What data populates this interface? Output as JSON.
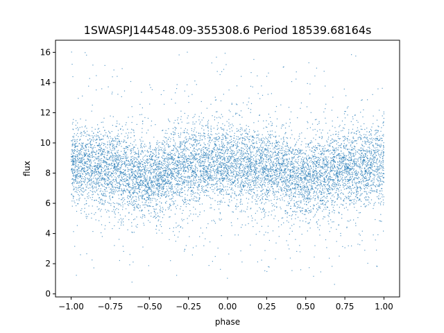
{
  "chart_data": {
    "type": "scatter",
    "title": "1SWASPJ144548.09-355308.6 Period 18539.68164s",
    "xlabel": "phase",
    "ylabel": "flux",
    "xlim": [
      -1.1,
      1.1
    ],
    "ylim": [
      -0.2,
      16.8
    ],
    "grid": false,
    "marker_color": "#1f77b4",
    "x_ticks": [
      -1.0,
      -0.75,
      -0.5,
      -0.25,
      0.0,
      0.25,
      0.5,
      0.75,
      1.0
    ],
    "x_tick_labels": [
      "−1.00",
      "−0.75",
      "−0.50",
      "−0.25",
      "0.00",
      "0.25",
      "0.50",
      "0.75",
      "1.00"
    ],
    "y_ticks": [
      0,
      2,
      4,
      6,
      8,
      10,
      12,
      14,
      16
    ],
    "y_tick_labels": [
      "0",
      "2",
      "4",
      "6",
      "8",
      "10",
      "12",
      "14",
      "16"
    ],
    "series": [
      {
        "x_range": [
          -1.0,
          1.0
        ],
        "flux_profile": [
          {
            "phase": -1.0,
            "median_flux": 8.5
          },
          {
            "phase": -0.75,
            "median_flux": 8.4
          },
          {
            "phase": -0.5,
            "median_flux": 7.6
          },
          {
            "phase": -0.25,
            "median_flux": 8.4
          },
          {
            "phase": 0.0,
            "median_flux": 8.6
          },
          {
            "phase": 0.25,
            "median_flux": 8.4
          },
          {
            "phase": 0.5,
            "median_flux": 7.6
          },
          {
            "phase": 0.75,
            "median_flux": 8.4
          },
          {
            "phase": 1.0,
            "median_flux": 8.5
          }
        ],
        "flux_spread": 1.5,
        "flux_min": 0.6,
        "flux_max": 16.1
      }
    ]
  }
}
